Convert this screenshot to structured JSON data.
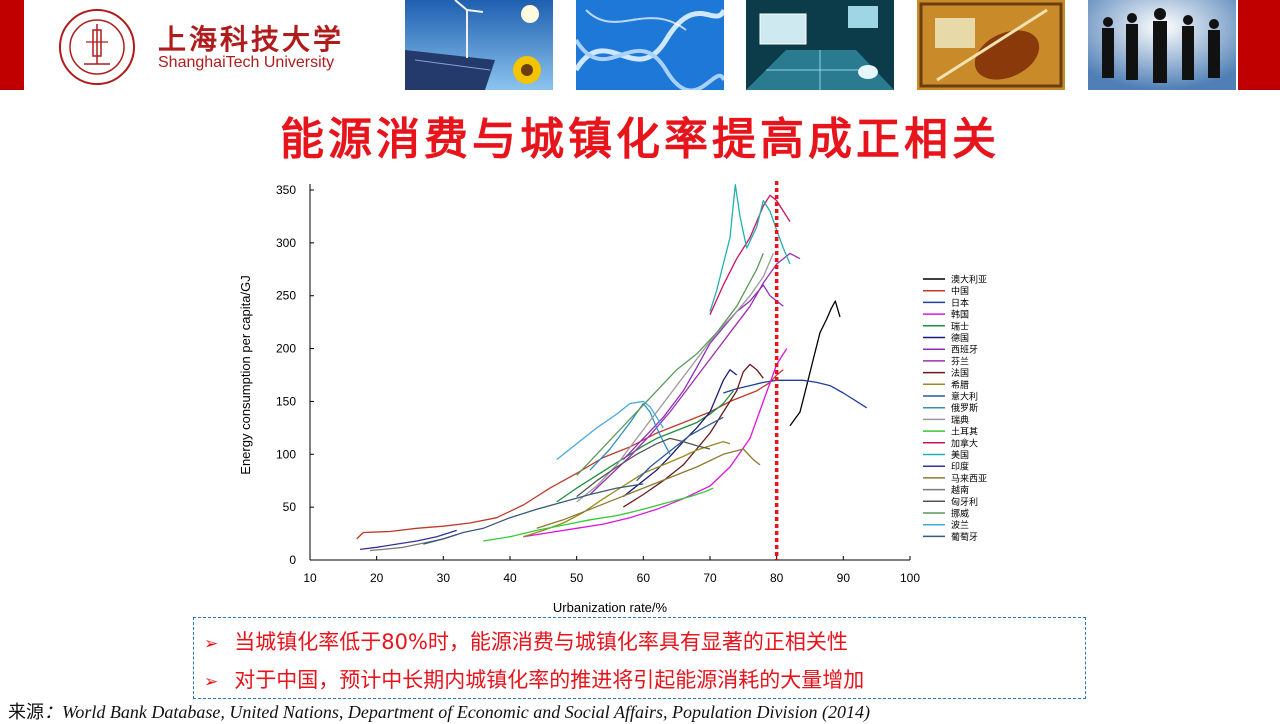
{
  "header": {
    "university_cn": "上海科技大学",
    "university_en": "ShanghaiTech University",
    "banner_images": [
      "wind-turbine-sunflower-image",
      "dna-helix-image",
      "laptop-grid-image",
      "violin-art-image",
      "business-silhouettes-image"
    ]
  },
  "title": "能源消费与城镇化率提高成正相关",
  "chart_data": {
    "type": "line",
    "xlabel": "Urbanization rate/%",
    "ylabel": "Energy consumption per capita/GJ",
    "xlim": [
      10,
      100
    ],
    "ylim": [
      0,
      350
    ],
    "xticks": [
      10,
      20,
      30,
      40,
      50,
      60,
      70,
      80,
      90,
      100
    ],
    "yticks": [
      0,
      50,
      100,
      150,
      200,
      250,
      300,
      350
    ],
    "grid": false,
    "legend_position": "right",
    "reference_line": {
      "x": 80,
      "style": "dotted",
      "color": "#e8141c"
    },
    "series": [
      {
        "name": "澳大利亚",
        "color": "#000000",
        "x": [
          82,
          83.5,
          84.5,
          85.5,
          86.5,
          87.5,
          88.2,
          88.8,
          89.5
        ],
        "y": [
          127,
          140,
          165,
          190,
          215,
          228,
          238,
          245,
          230
        ]
      },
      {
        "name": "中国",
        "color": "#c0392b",
        "x": [
          17,
          18,
          22,
          26,
          30,
          34,
          38,
          42,
          46,
          50,
          54,
          58,
          62,
          66,
          70,
          73,
          75,
          77,
          79,
          80,
          81
        ],
        "y": [
          20,
          26,
          27,
          30,
          32,
          35,
          40,
          52,
          68,
          82,
          97,
          107,
          120,
          130,
          140,
          150,
          155,
          160,
          168,
          175,
          180
        ]
      },
      {
        "name": "日本",
        "color": "#1f3f9f",
        "x": [
          72,
          74,
          76,
          78,
          80,
          82,
          84,
          86,
          88,
          90,
          92,
          93.5
        ],
        "y": [
          158,
          162,
          165,
          168,
          170,
          170,
          170,
          168,
          165,
          158,
          150,
          144
        ]
      },
      {
        "name": "韩国",
        "color": "#e014e0",
        "x": [
          42,
          46,
          50,
          54,
          58,
          62,
          66,
          70,
          73,
          76,
          78,
          80,
          81.5
        ],
        "y": [
          22,
          26,
          30,
          34,
          40,
          48,
          58,
          70,
          88,
          115,
          150,
          185,
          200
        ]
      },
      {
        "name": "瑞士",
        "color": "#1e8f3a",
        "x": [
          47,
          50,
          53,
          56,
          58,
          60,
          62,
          64,
          66,
          68,
          70,
          72,
          73.5
        ],
        "y": [
          55,
          68,
          80,
          92,
          100,
          108,
          115,
          120,
          125,
          130,
          138,
          148,
          160
        ]
      },
      {
        "name": "德国",
        "color": "#1a1a7a",
        "x": [
          57,
          60,
          62,
          64,
          66,
          68,
          70,
          71,
          72,
          73,
          74
        ],
        "y": [
          60,
          75,
          85,
          98,
          112,
          125,
          140,
          155,
          170,
          180,
          175
        ]
      },
      {
        "name": "西班牙",
        "color": "#8e2cc0",
        "x": [
          57,
          60,
          63,
          66,
          68,
          70,
          72,
          74,
          76,
          78,
          79,
          80,
          81
        ],
        "y": [
          95,
          115,
          135,
          160,
          182,
          205,
          220,
          235,
          245,
          260,
          250,
          245,
          240
        ]
      },
      {
        "name": "芬兰",
        "color": "#9b30b0",
        "x": [
          52,
          55,
          58,
          61,
          64,
          67,
          70,
          73,
          76,
          78,
          80,
          82,
          83.5
        ],
        "y": [
          62,
          80,
          98,
          118,
          140,
          165,
          190,
          215,
          240,
          262,
          280,
          290,
          285
        ]
      },
      {
        "name": "法国",
        "color": "#6b1a1a",
        "x": [
          57,
          60,
          63,
          66,
          68,
          70,
          72,
          74,
          75,
          76,
          77,
          78
        ],
        "y": [
          50,
          62,
          75,
          90,
          105,
          120,
          140,
          160,
          178,
          185,
          180,
          172
        ]
      },
      {
        "name": "希腊",
        "color": "#9a8a20",
        "x": [
          42,
          45,
          48,
          51,
          54,
          57,
          60,
          63,
          66,
          68,
          70,
          72,
          73
        ],
        "y": [
          22,
          28,
          35,
          45,
          58,
          70,
          82,
          90,
          98,
          104,
          108,
          112,
          110
        ]
      },
      {
        "name": "意大利",
        "color": "#2a5a9a",
        "x": [
          59,
          61,
          63,
          65,
          67,
          69,
          70.5,
          72
        ],
        "y": [
          75,
          88,
          98,
          108,
          118,
          125,
          130,
          135
        ]
      },
      {
        "name": "俄罗斯",
        "color": "#2f8fbf",
        "x": [
          52,
          55,
          58,
          60,
          61,
          62,
          63,
          64
        ],
        "y": [
          85,
          105,
          130,
          148,
          140,
          125,
          112,
          100
        ]
      },
      {
        "name": "瑞典",
        "color": "#9a9a9a",
        "x": [
          50,
          53,
          56,
          59,
          62,
          65,
          68,
          71,
          74,
          76,
          78,
          79.5
        ],
        "y": [
          55,
          70,
          90,
          115,
          140,
          165,
          190,
          215,
          235,
          250,
          268,
          290
        ]
      },
      {
        "name": "土耳其",
        "color": "#33cc33",
        "x": [
          36,
          40,
          44,
          48,
          52,
          56,
          60,
          64,
          67,
          69,
          70.5
        ],
        "y": [
          18,
          22,
          28,
          33,
          38,
          42,
          48,
          55,
          60,
          64,
          68
        ]
      },
      {
        "name": "加拿大",
        "color": "#cc1166",
        "x": [
          70,
          72,
          74,
          76,
          77,
          78,
          79,
          80,
          81,
          82
        ],
        "y": [
          232,
          260,
          285,
          305,
          320,
          335,
          345,
          340,
          330,
          320
        ]
      },
      {
        "name": "美国",
        "color": "#22b0b0",
        "x": [
          70,
          71,
          72,
          73,
          73.8,
          74.5,
          75.5,
          77,
          78,
          79,
          80,
          81,
          82
        ],
        "y": [
          235,
          255,
          280,
          305,
          355,
          325,
          295,
          315,
          340,
          330,
          312,
          295,
          280
        ]
      },
      {
        "name": "印度",
        "color": "#333399",
        "x": [
          17.5,
          20,
          23,
          26,
          29,
          32
        ],
        "y": [
          10,
          12,
          15,
          18,
          22,
          28
        ]
      },
      {
        "name": "马来西亚",
        "color": "#8a7a30",
        "x": [
          44,
          48,
          52,
          56,
          60,
          64,
          68,
          72,
          75,
          76.5,
          77.5
        ],
        "y": [
          30,
          38,
          48,
          58,
          68,
          78,
          88,
          100,
          105,
          95,
          90
        ]
      },
      {
        "name": "越南",
        "color": "#7a7a7a",
        "x": [
          19,
          21,
          24,
          27,
          30,
          32
        ],
        "y": [
          9,
          10,
          12,
          16,
          20,
          24
        ]
      },
      {
        "name": "匈牙利",
        "color": "#555555",
        "x": [
          50,
          53,
          56,
          59,
          62,
          64,
          66,
          68,
          70
        ],
        "y": [
          60,
          75,
          88,
          100,
          110,
          115,
          112,
          108,
          105
        ]
      },
      {
        "name": "挪威",
        "color": "#5a9a5a",
        "x": [
          50,
          53,
          56,
          59,
          62,
          65,
          68,
          71,
          74,
          77,
          78
        ],
        "y": [
          80,
          100,
          120,
          140,
          160,
          180,
          195,
          215,
          240,
          275,
          290
        ]
      },
      {
        "name": "波兰",
        "color": "#44aadd",
        "x": [
          47,
          50,
          53,
          56,
          58,
          60,
          61,
          62,
          63
        ],
        "y": [
          95,
          110,
          125,
          138,
          148,
          150,
          145,
          135,
          125
        ]
      },
      {
        "name": "葡萄牙",
        "color": "#3a5a7a",
        "x": [
          27,
          30,
          33,
          36,
          40,
          44,
          48,
          52,
          56,
          60
        ],
        "y": [
          15,
          20,
          26,
          30,
          40,
          48,
          55,
          62,
          68,
          72
        ]
      }
    ]
  },
  "notes": [
    {
      "arrow": "➢",
      "text": "当城镇化率低于80%时，能源消费与城镇化率具有显著的正相关性"
    },
    {
      "arrow": "➢",
      "text": "对于中国，预计中长期内城镇化率的推进将引起能源消耗的大量增加"
    }
  ],
  "source": {
    "label": "来源",
    "text": "：World Bank Database, United Nations, Department of Economic and Social Affairs, Population Division (2014)"
  }
}
